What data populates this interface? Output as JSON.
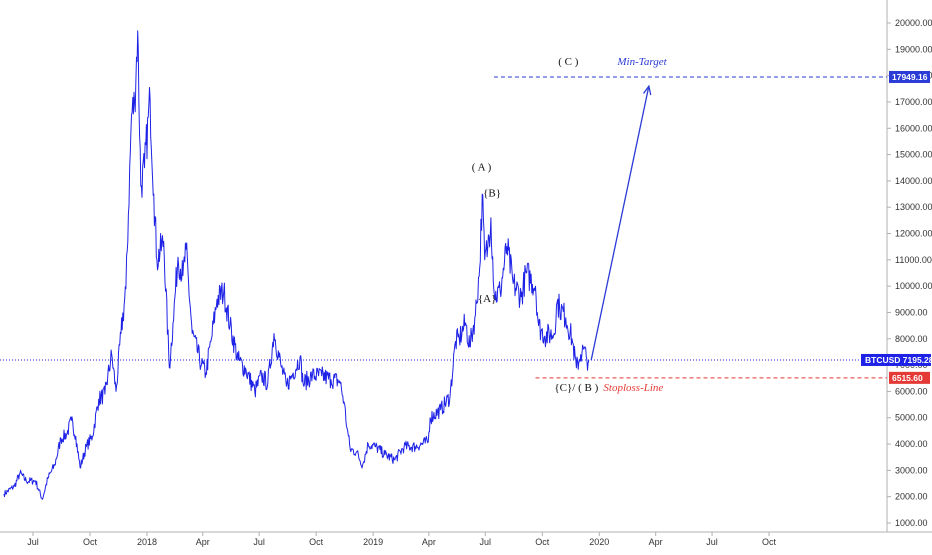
{
  "colors": {
    "price": "#1e22e6",
    "target": "#2b3bd6",
    "stop": "#e53935",
    "current": "#1e22e6",
    "axis": "#b0b0b0",
    "text": "#333333"
  },
  "chart_data": {
    "type": "line",
    "symbol": "BTCUSD",
    "current_price": 7195.28,
    "y_range": [
      800,
      20600
    ],
    "y_ticks": [
      "1000.00",
      "2000.00",
      "3000.00",
      "4000.00",
      "5000.00",
      "6000.00",
      "7000.00",
      "8000.00",
      "9000.00",
      "10000.00",
      "11000.00",
      "12000.00",
      "13000.00",
      "14000.00",
      "15000.00",
      "16000.00",
      "17000.00",
      "18000.00",
      "19000.00",
      "20000.00"
    ],
    "x_ticks": [
      {
        "label": "Jul",
        "date": "2017-07-01"
      },
      {
        "label": "Oct",
        "date": "2017-10-01"
      },
      {
        "label": "2018",
        "date": "2018-01-01"
      },
      {
        "label": "Apr",
        "date": "2018-04-01"
      },
      {
        "label": "Jul",
        "date": "2018-07-01"
      },
      {
        "label": "Oct",
        "date": "2018-10-01"
      },
      {
        "label": "2019",
        "date": "2019-01-01"
      },
      {
        "label": "Apr",
        "date": "2019-04-01"
      },
      {
        "label": "Jul",
        "date": "2019-07-01"
      },
      {
        "label": "Oct",
        "date": "2019-10-01"
      },
      {
        "label": "2020",
        "date": "2020-01-01"
      },
      {
        "label": "Apr",
        "date": "2020-04-01"
      },
      {
        "label": "Jul",
        "date": "2020-07-01"
      },
      {
        "label": "Oct",
        "date": "2020-10-01"
      }
    ],
    "series": [
      {
        "values": [
          [
            "2017-05-15",
            2100
          ],
          [
            "2017-06-01",
            2400
          ],
          [
            "2017-06-10",
            2900
          ],
          [
            "2017-06-20",
            2600
          ],
          [
            "2017-07-05",
            2600
          ],
          [
            "2017-07-16",
            1900
          ],
          [
            "2017-07-25",
            2700
          ],
          [
            "2017-08-05",
            3200
          ],
          [
            "2017-08-15",
            4200
          ],
          [
            "2017-08-25",
            4400
          ],
          [
            "2017-09-01",
            4900
          ],
          [
            "2017-09-08",
            4300
          ],
          [
            "2017-09-15",
            3100
          ],
          [
            "2017-09-25",
            3900
          ],
          [
            "2017-10-05",
            4300
          ],
          [
            "2017-10-15",
            5700
          ],
          [
            "2017-10-25",
            5900
          ],
          [
            "2017-11-05",
            7400
          ],
          [
            "2017-11-12",
            6000
          ],
          [
            "2017-11-20",
            8200
          ],
          [
            "2017-11-28",
            9900
          ],
          [
            "2017-12-07",
            16500
          ],
          [
            "2017-12-12",
            17000
          ],
          [
            "2017-12-17",
            19700
          ],
          [
            "2017-12-22",
            13800
          ],
          [
            "2017-12-28",
            14500
          ],
          [
            "2018-01-06",
            17100
          ],
          [
            "2018-01-12",
            13500
          ],
          [
            "2018-01-17",
            11000
          ],
          [
            "2018-01-28",
            11700
          ],
          [
            "2018-02-06",
            6900
          ],
          [
            "2018-02-12",
            8600
          ],
          [
            "2018-02-20",
            11100
          ],
          [
            "2018-02-28",
            10400
          ],
          [
            "2018-03-05",
            11400
          ],
          [
            "2018-03-15",
            8200
          ],
          [
            "2018-03-30",
            7000
          ],
          [
            "2018-04-06",
            6700
          ],
          [
            "2018-04-15",
            8000
          ],
          [
            "2018-04-24",
            9500
          ],
          [
            "2018-05-05",
            9800
          ],
          [
            "2018-05-15",
            8500
          ],
          [
            "2018-05-28",
            7200
          ],
          [
            "2018-06-10",
            6800
          ],
          [
            "2018-06-24",
            6000
          ],
          [
            "2018-07-05",
            6600
          ],
          [
            "2018-07-15",
            6300
          ],
          [
            "2018-07-25",
            8200
          ],
          [
            "2018-08-05",
            7000
          ],
          [
            "2018-08-14",
            6200
          ],
          [
            "2018-08-25",
            6700
          ],
          [
            "2018-09-05",
            7300
          ],
          [
            "2018-09-10",
            6300
          ],
          [
            "2018-09-25",
            6600
          ],
          [
            "2018-10-10",
            6600
          ],
          [
            "2018-10-25",
            6450
          ],
          [
            "2018-11-08",
            6400
          ],
          [
            "2018-11-15",
            5600
          ],
          [
            "2018-11-20",
            4600
          ],
          [
            "2018-11-25",
            3800
          ],
          [
            "2018-12-05",
            3700
          ],
          [
            "2018-12-15",
            3200
          ],
          [
            "2018-12-24",
            4000
          ],
          [
            "2019-01-05",
            3900
          ],
          [
            "2019-01-20",
            3600
          ],
          [
            "2019-02-05",
            3400
          ],
          [
            "2019-02-20",
            3900
          ],
          [
            "2019-03-10",
            3900
          ],
          [
            "2019-03-31",
            4100
          ],
          [
            "2019-04-03",
            5000
          ],
          [
            "2019-04-20",
            5300
          ],
          [
            "2019-05-05",
            5800
          ],
          [
            "2019-05-14",
            7900
          ],
          [
            "2019-05-20",
            8000
          ],
          [
            "2019-05-30",
            8600
          ],
          [
            "2019-06-06",
            7700
          ],
          [
            "2019-06-15",
            8900
          ],
          [
            "2019-06-22",
            10700
          ],
          [
            "2019-06-26",
            13500
          ],
          [
            "2019-06-30",
            11000
          ],
          [
            "2019-07-05",
            11500
          ],
          [
            "2019-07-10",
            12600
          ],
          [
            "2019-07-16",
            9600
          ],
          [
            "2019-07-25",
            9800
          ],
          [
            "2019-08-05",
            11500
          ],
          [
            "2019-08-15",
            10100
          ],
          [
            "2019-08-28",
            9600
          ],
          [
            "2019-09-05",
            10500
          ],
          [
            "2019-09-20",
            10000
          ],
          [
            "2019-09-25",
            8500
          ],
          [
            "2019-10-05",
            8100
          ],
          [
            "2019-10-20",
            8200
          ],
          [
            "2019-10-25",
            9400
          ],
          [
            "2019-10-29",
            9200
          ],
          [
            "2019-11-08",
            8800
          ],
          [
            "2019-11-18",
            8000
          ],
          [
            "2019-11-25",
            6900
          ],
          [
            "2019-12-02",
            7400
          ],
          [
            "2019-12-07",
            7600
          ],
          [
            "2019-12-12",
            7200
          ],
          [
            "2019-12-15",
            7195.28
          ]
        ]
      }
    ],
    "levels": [
      {
        "label": "17949.16",
        "value": 17949.16,
        "role": "target"
      },
      {
        "label": "6515.60",
        "value": 6515.6,
        "role": "stop"
      }
    ],
    "annotations": [
      {
        "text": "( C )",
        "date": "2019-11-12",
        "value": 18400
      },
      {
        "text": "Min-Target",
        "date": "2020-03-10",
        "value": 18400
      },
      {
        "text": "( A )",
        "date": "2019-06-25",
        "value": 14400
      },
      {
        "text": "{B}",
        "date": "2019-07-12",
        "value": 13400
      },
      {
        "text": "{A}",
        "date": "2019-07-04",
        "value": 9400
      },
      {
        "text": "{C}/ ( B )",
        "date": "2019-11-25",
        "value": 6020
      },
      {
        "text": "Stoploss-Line",
        "date": "2020-02-25",
        "value": 6020
      }
    ],
    "arrow": {
      "from": [
        "2019-12-19",
        7195.28
      ],
      "to": [
        "2020-03-21",
        17600
      ]
    }
  }
}
